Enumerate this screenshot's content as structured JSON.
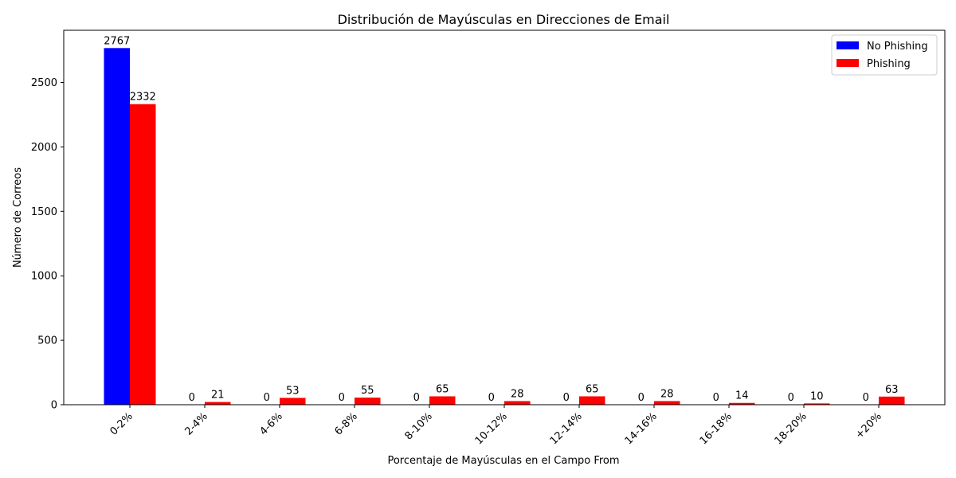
{
  "chart_data": {
    "type": "bar",
    "title": "Distribución de Mayúsculas en Direcciones de Email",
    "xlabel": "Porcentaje de Mayúsculas en el Campo From",
    "ylabel": "Número de Correos",
    "categories": [
      "0-2%",
      "2-4%",
      "4-6%",
      "6-8%",
      "8-10%",
      "10-12%",
      "12-14%",
      "14-16%",
      "16-18%",
      "18-20%",
      "+20%"
    ],
    "series": [
      {
        "name": "No Phishing",
        "color": "#0000ff",
        "values": [
          2767,
          0,
          0,
          0,
          0,
          0,
          0,
          0,
          0,
          0,
          0
        ]
      },
      {
        "name": "Phishing",
        "color": "#ff0000",
        "values": [
          2332,
          21,
          53,
          55,
          65,
          28,
          65,
          28,
          14,
          10,
          63
        ]
      }
    ],
    "ylim": [
      0,
      2905
    ],
    "yticks": [
      0,
      500,
      1000,
      1500,
      2000,
      2500
    ],
    "grid": false,
    "legend_position": "top-right"
  }
}
